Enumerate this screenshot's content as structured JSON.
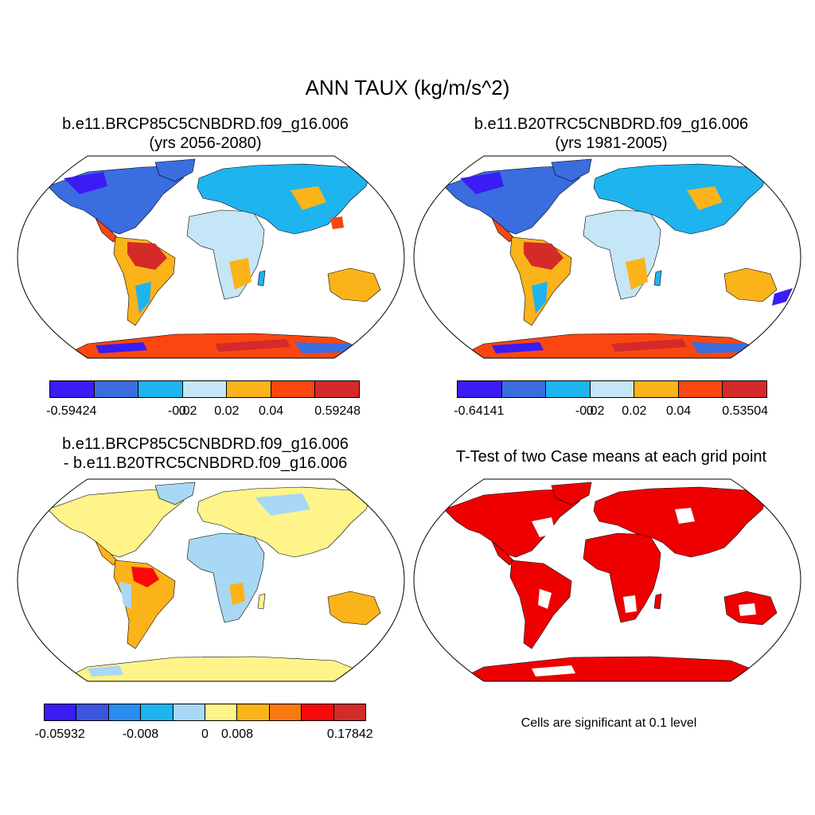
{
  "title": "ANN TAUX (kg/m/s^2)",
  "panels": [
    {
      "id": "p1",
      "title_line1": "b.e11.BRCP85C5CNBDRD.f09_g16.006",
      "title_line2": "(yrs 2056-2080)",
      "colorbar": {
        "colors": [
          "#3a1cf5",
          "#3a6de0",
          "#1eb4f0",
          "#c5e6f7",
          "#fbb31a",
          "#f9470f",
          "#d42a2a"
        ],
        "labels": [
          "-0.59424",
          "-0.02",
          "0",
          "0.02",
          "0.04",
          "0.59248"
        ]
      }
    },
    {
      "id": "p2",
      "title_line1": "b.e11.B20TRC5CNBDRD.f09_g16.006",
      "title_line2": "(yrs 1981-2005)",
      "colorbar": {
        "colors": [
          "#3a1cf5",
          "#3a6de0",
          "#1eb4f0",
          "#c5e6f7",
          "#fbb31a",
          "#f9470f",
          "#d42a2a"
        ],
        "labels": [
          "-0.64141",
          "-0.02",
          "0",
          "0.02",
          "0.04",
          "0.53504"
        ]
      }
    },
    {
      "id": "p3",
      "title_line1": "b.e11.BRCP85C5CNBDRD.f09_g16.006",
      "title_line2": "- b.e11.B20TRC5CNBDRD.f09_g16.006",
      "colorbar": {
        "colors": [
          "#3a1cf5",
          "#3a55e0",
          "#2a8cf0",
          "#1eb4f0",
          "#a8d8f5",
          "#fff48a",
          "#fbb31a",
          "#fb7a10",
          "#f90a0a",
          "#d42a2a"
        ],
        "labels": [
          "-0.05932",
          "-0.008",
          "0",
          "0.008",
          "0.17842"
        ]
      }
    },
    {
      "id": "p4",
      "title_line1": "T-Test of two Case means at each grid point",
      "note": "Cells are significant at 0.1 level",
      "sig_color": "#ee0000"
    }
  ]
}
